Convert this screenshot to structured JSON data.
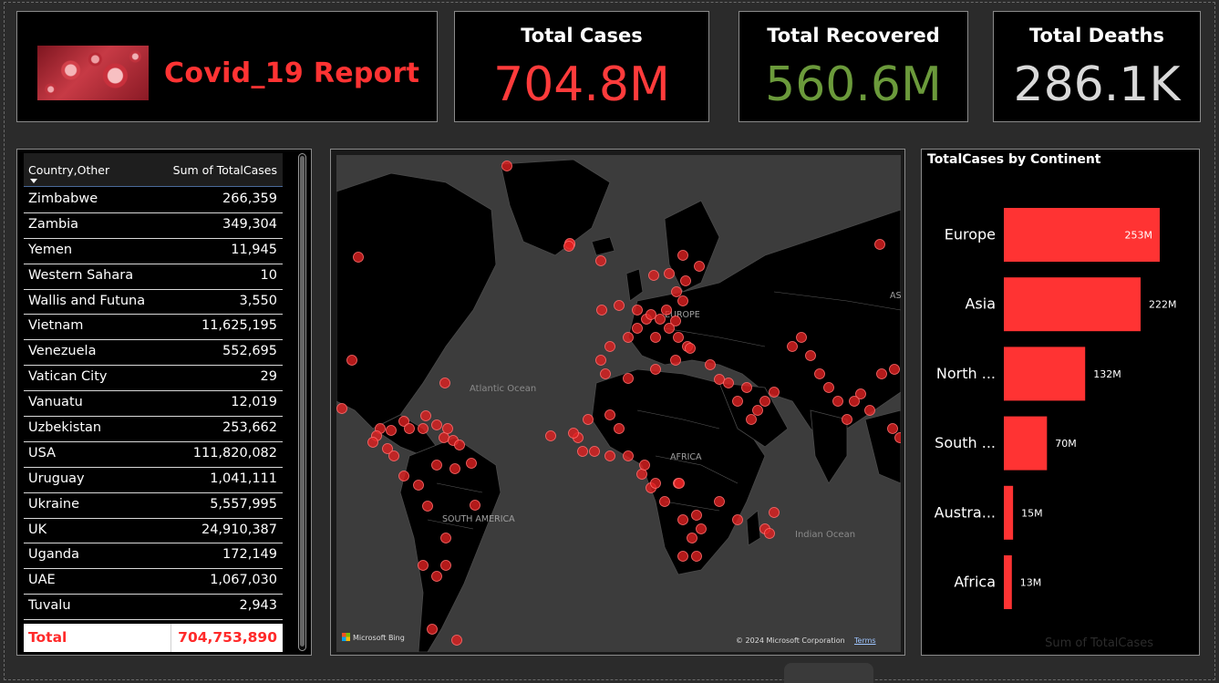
{
  "title_card": {
    "title": "Covid_19 Report"
  },
  "kpis": {
    "cases": {
      "label": "Total Cases",
      "value": "704.8M",
      "color": "#ff3b3b"
    },
    "recovered": {
      "label": "Total Recovered",
      "value": "560.6M",
      "color": "#6b9a3b"
    },
    "deaths": {
      "label": "Total Deaths",
      "value": "286.1K",
      "color": "#d9d9d9"
    }
  },
  "table": {
    "col_country": "Country,Other",
    "col_sum": "Sum of TotalCases",
    "rows": [
      {
        "name": "Zimbabwe",
        "value": "266,359"
      },
      {
        "name": "Zambia",
        "value": "349,304"
      },
      {
        "name": "Yemen",
        "value": "11,945"
      },
      {
        "name": "Western Sahara",
        "value": "10"
      },
      {
        "name": "Wallis and Futuna",
        "value": "3,550"
      },
      {
        "name": "Vietnam",
        "value": "11,625,195"
      },
      {
        "name": "Venezuela",
        "value": "552,695"
      },
      {
        "name": "Vatican City",
        "value": "29"
      },
      {
        "name": "Vanuatu",
        "value": "12,019"
      },
      {
        "name": "Uzbekistan",
        "value": "253,662"
      },
      {
        "name": "USA",
        "value": "111,820,082"
      },
      {
        "name": "Uruguay",
        "value": "1,041,111"
      },
      {
        "name": "Ukraine",
        "value": "5,557,995"
      },
      {
        "name": "UK",
        "value": "24,910,387"
      },
      {
        "name": "Uganda",
        "value": "172,149"
      },
      {
        "name": "UAE",
        "value": "1,067,030"
      },
      {
        "name": "Tuvalu",
        "value": "2,943"
      }
    ],
    "total_label": "Total",
    "total_value": "704,753,890"
  },
  "map": {
    "labels": {
      "atlantic": "Atlantic Ocean",
      "indian": "Indian Ocean",
      "europe": "EUROPE",
      "africa": "AFRICA",
      "south_america": "SOUTH AMERICA",
      "asia_cut": "AS"
    },
    "bing": "Microsoft Bing",
    "copyright": "© 2024 Microsoft Corporation",
    "terms": "Terms",
    "dot_color": "#e02020"
  },
  "chart_data": {
    "type": "bar",
    "orientation": "horizontal",
    "title": "TotalCases by Continent",
    "categories": [
      "Europe",
      "Asia",
      "North ...",
      "South ...",
      "Austra...",
      "Africa"
    ],
    "values": [
      253,
      222,
      132,
      70,
      15,
      13
    ],
    "value_labels": [
      "253M",
      "222M",
      "132M",
      "70M",
      "15M",
      "13M"
    ],
    "xlabel": "Sum of TotalCases",
    "bar_color": "#ff3333",
    "grid": false
  }
}
